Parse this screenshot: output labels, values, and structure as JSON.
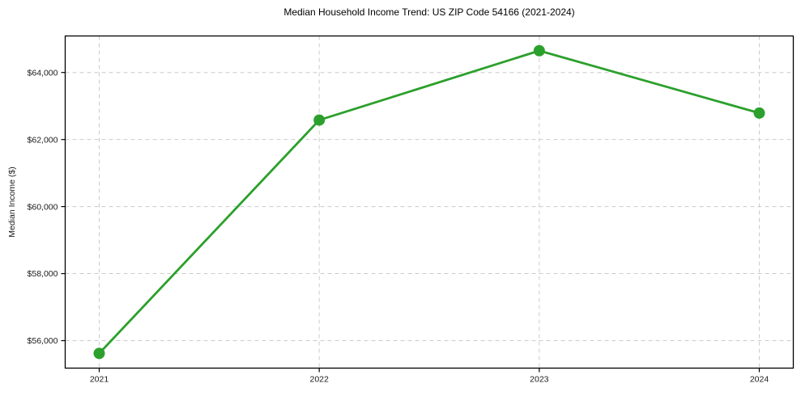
{
  "chart_data": {
    "type": "line",
    "title": "Median Household Income Trend: US ZIP Code 54166 (2021-2024)",
    "xlabel": "",
    "ylabel": "Median Income ($)",
    "categories": [
      "2021",
      "2022",
      "2023",
      "2024"
    ],
    "values": [
      55620,
      62580,
      64650,
      62790
    ],
    "yticks": [
      56000,
      58000,
      60000,
      62000,
      64000
    ],
    "ytick_labels": [
      "$56,000",
      "$58,000",
      "$60,000",
      "$62,000",
      "$64,000"
    ],
    "ylim": [
      55180,
      65090
    ],
    "grid": true,
    "grid_style": "dashed",
    "legend": false,
    "marker": "circle",
    "marker_radius": 7,
    "line_width": 2.8,
    "colors": {
      "line": "#2ca02c",
      "marker": "#2ca02c",
      "grid": "#cccccc",
      "axis": "#000000",
      "text": "#1a1a1a"
    }
  }
}
